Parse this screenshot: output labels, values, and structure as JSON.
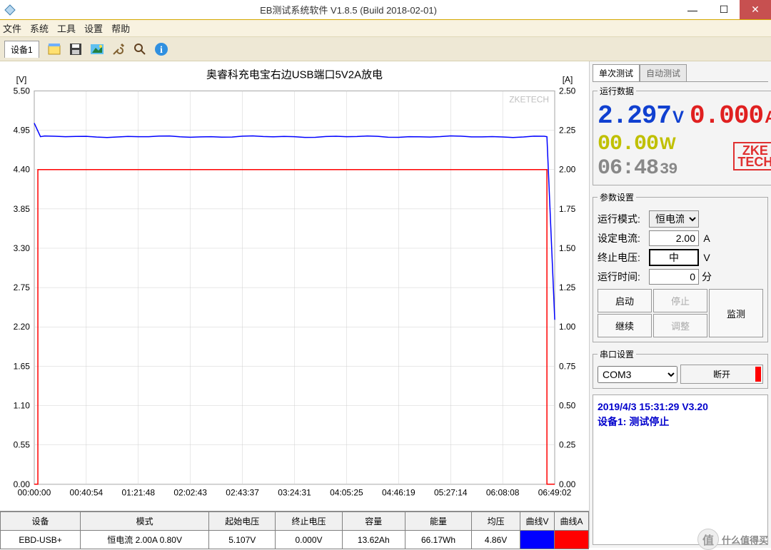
{
  "window": {
    "title": "EB测试系统软件 V1.8.5 (Build 2018-02-01)"
  },
  "menu": [
    "文件",
    "系统",
    "工具",
    "设置",
    "帮助"
  ],
  "toolbar": {
    "device_tab": "设备1"
  },
  "chart": {
    "title": "奥睿科充电宝右边USB端口5V2A放电",
    "watermark": "ZKETECH",
    "left_axis": {
      "label": "[V]",
      "min": 0.0,
      "max": 5.5,
      "step": 0.55,
      "ticks": [
        "0.00",
        "0.55",
        "1.10",
        "1.65",
        "2.20",
        "2.75",
        "3.30",
        "3.85",
        "4.40",
        "4.95",
        "5.50"
      ],
      "color": "#000"
    },
    "right_axis": {
      "label": "[A]",
      "min": 0.0,
      "max": 2.5,
      "step": 0.25,
      "ticks": [
        "0.00",
        "0.25",
        "0.50",
        "0.75",
        "1.00",
        "1.25",
        "1.50",
        "1.75",
        "2.00",
        "2.25",
        "2.50"
      ],
      "color": "#000"
    },
    "x_axis": {
      "ticks": [
        "00:00:00",
        "00:40:54",
        "01:21:48",
        "02:02:43",
        "02:43:37",
        "03:24:31",
        "04:05:25",
        "04:46:19",
        "05:27:14",
        "06:08:08",
        "06:49:02"
      ]
    },
    "voltage_series": {
      "color": "#0000ff",
      "start_value": 5.05,
      "plateau_value": 4.86,
      "end_drop_x": 0.985,
      "end_value": 2.3
    },
    "current_series": {
      "color": "#ff0000",
      "rise_x": 0.007,
      "plateau_value": 2.0,
      "end_drop_x": 0.985,
      "end_value": 0.0
    },
    "grid_color": "#d0d0d0",
    "background": "#ffffff",
    "plot_border": "#808080"
  },
  "table": {
    "headers": [
      "设备",
      "模式",
      "起始电压",
      "终止电压",
      "容量",
      "能量",
      "均压",
      "曲线V",
      "曲线A"
    ],
    "row": [
      "EBD-USB+",
      "恒电流  2.00A  0.80V",
      "5.107V",
      "0.000V",
      "13.62Ah",
      "66.17Wh",
      "4.86V",
      "",
      ""
    ]
  },
  "right_panel": {
    "tabs": [
      "单次测试",
      "自动测试"
    ],
    "running_data": {
      "legend": "运行数据",
      "voltage": "2.297",
      "voltage_unit": "V",
      "voltage_color": "#1040d0",
      "current": "0.000",
      "current_unit": "A",
      "current_color": "#e02020",
      "power": "00.00",
      "power_unit": "W",
      "power_color": "#c0c000",
      "time": "06:48",
      "time_sec": "39",
      "time_color": "#888888",
      "logo_top": "ZKE",
      "logo_bottom": "TECH"
    },
    "params": {
      "legend": "参数设置",
      "mode_label": "运行模式:",
      "mode_value": "恒电流",
      "current_label": "设定电流:",
      "current_value": "2.00",
      "current_unit": "A",
      "cutoff_label": "终止电压:",
      "cutoff_value": "中",
      "cutoff_unit": "V",
      "time_label": "运行时间:",
      "time_value": "0",
      "time_unit": "分"
    },
    "buttons": {
      "start": "启动",
      "stop": "停止",
      "monitor": "监测",
      "continue": "继续",
      "adjust": "调整"
    },
    "serial": {
      "legend": "串口设置",
      "port": "COM3",
      "disconnect": "断开"
    },
    "status": {
      "line1": "2019/4/3 15:31:29  V3.20",
      "line2": "设备1: 测试停止"
    }
  },
  "footer_watermark": "什么值得买"
}
